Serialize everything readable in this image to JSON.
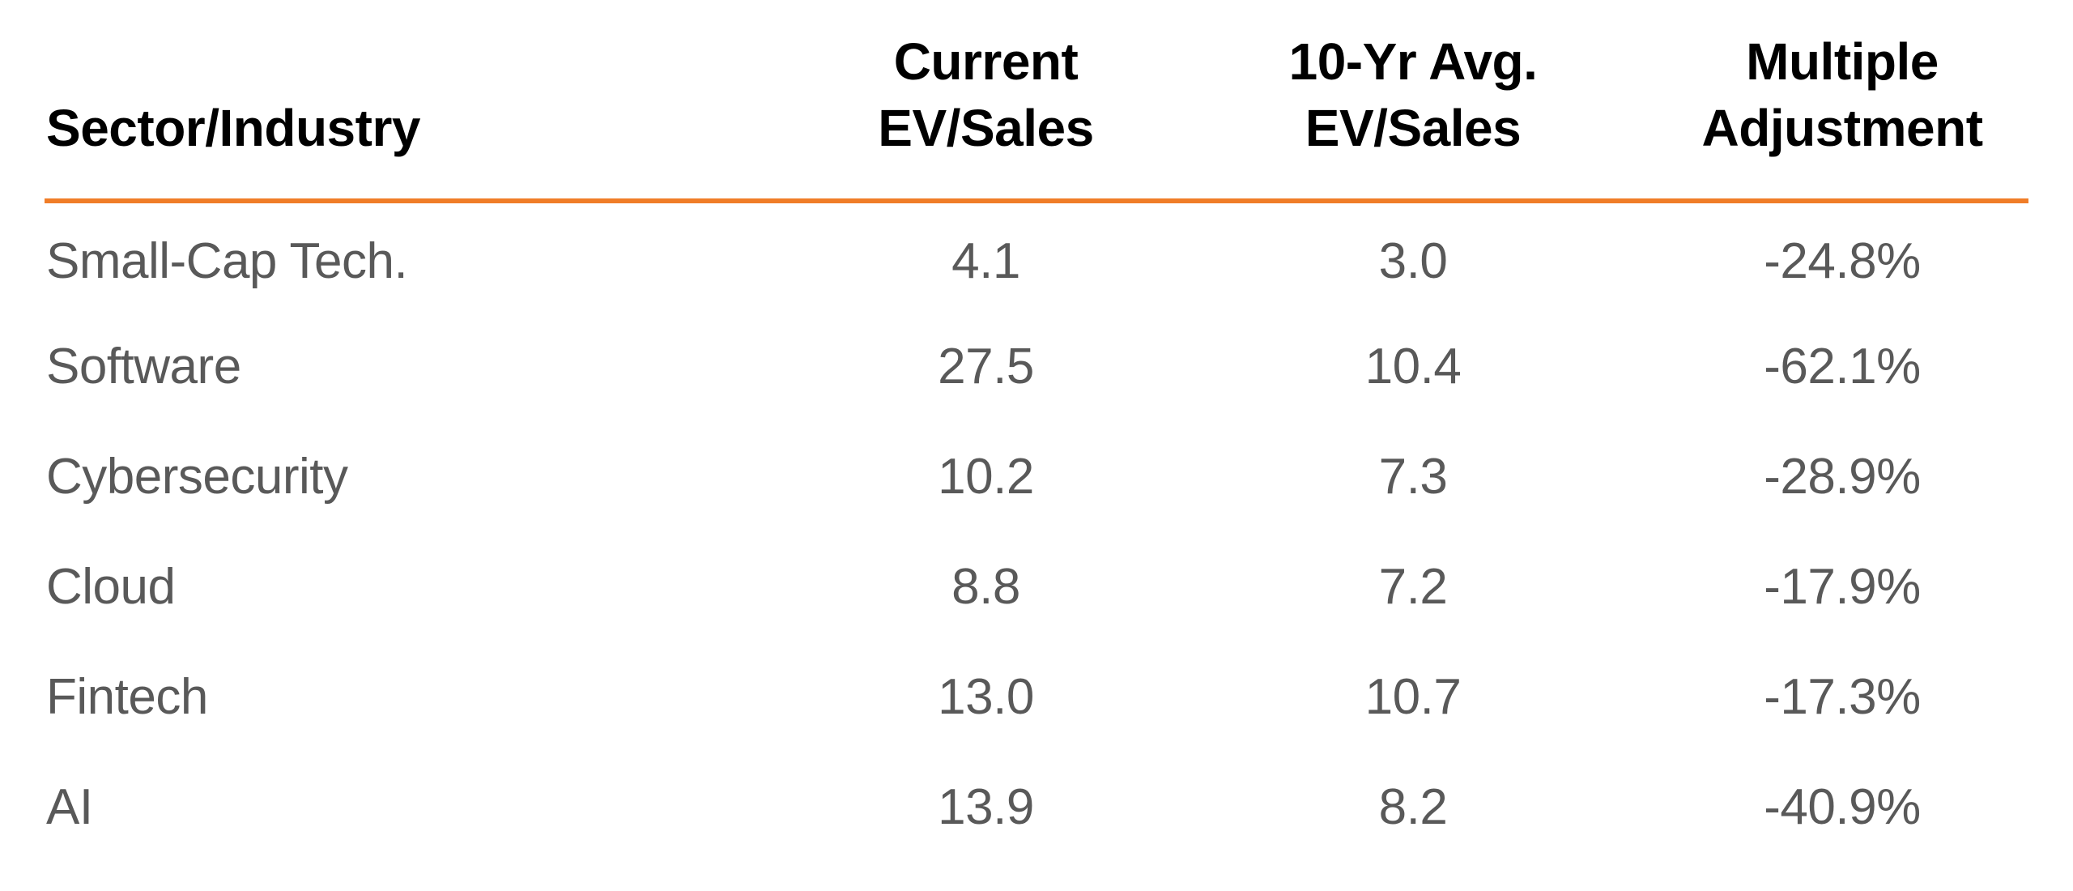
{
  "table": {
    "headers": [
      {
        "line1": "Sector/Industry",
        "line2": ""
      },
      {
        "line1": "Current",
        "line2": "EV/Sales"
      },
      {
        "line1": "10-Yr Avg.",
        "line2": "EV/Sales"
      },
      {
        "line1": "Multiple",
        "line2": "Adjustment"
      }
    ],
    "rows": [
      {
        "sector": "Small-Cap Tech.",
        "current": "4.1",
        "avg10yr": "3.0",
        "adjustment": "-24.8%"
      },
      {
        "sector": "Software",
        "current": "27.5",
        "avg10yr": "10.4",
        "adjustment": "-62.1%"
      },
      {
        "sector": "Cybersecurity",
        "current": "10.2",
        "avg10yr": "7.3",
        "adjustment": "-28.9%"
      },
      {
        "sector": "Cloud",
        "current": "8.8",
        "avg10yr": "7.2",
        "adjustment": "-17.9%"
      },
      {
        "sector": "Fintech",
        "current": "13.0",
        "avg10yr": "10.7",
        "adjustment": "-17.3%"
      },
      {
        "sector": "AI",
        "current": "13.9",
        "avg10yr": "8.2",
        "adjustment": "-40.9%"
      }
    ]
  },
  "colors": {
    "accent": "#F07D28",
    "header_text": "#000000",
    "body_text": "#595959",
    "background": "#FFFFFF"
  },
  "chart_data": {
    "type": "table",
    "title": "",
    "columns": [
      "Sector/Industry",
      "Current EV/Sales",
      "10-Yr Avg. EV/Sales",
      "Multiple Adjustment"
    ],
    "rows": [
      [
        "Small-Cap Tech.",
        4.1,
        3.0,
        "-24.8%"
      ],
      [
        "Software",
        27.5,
        10.4,
        "-62.1%"
      ],
      [
        "Cybersecurity",
        10.2,
        7.3,
        "-28.9%"
      ],
      [
        "Cloud",
        8.8,
        7.2,
        "-17.9%"
      ],
      [
        "Fintech",
        13.0,
        10.7,
        "-17.3%"
      ],
      [
        "AI",
        13.9,
        8.2,
        "-40.9%"
      ]
    ],
    "layout_hints": {
      "header_divider_color": "#F07D28",
      "first_column_align": "left",
      "value_columns_align": "center",
      "gridlines": false
    }
  }
}
